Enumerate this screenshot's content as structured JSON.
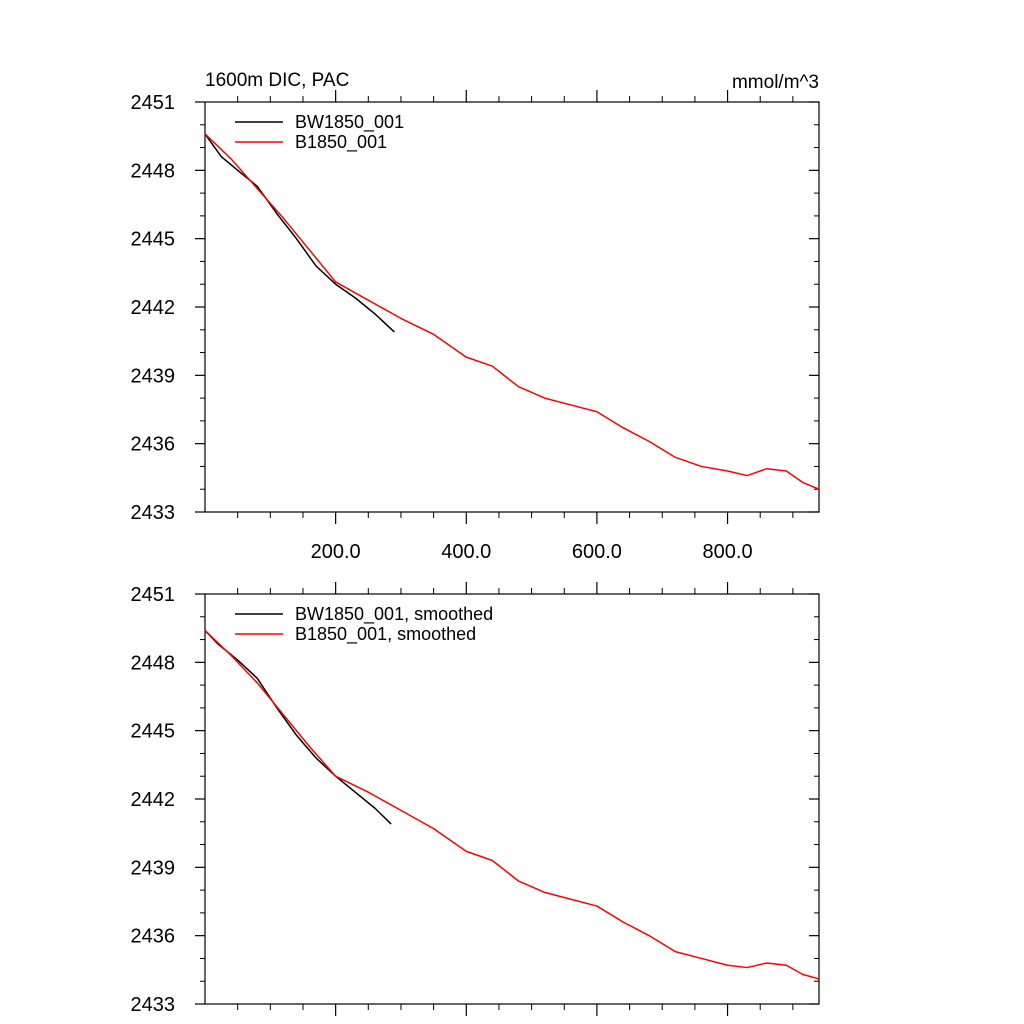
{
  "chart_data": [
    {
      "type": "line",
      "title": "1600m DIC, PAC",
      "units": "mmol/m^3",
      "xlim": [
        0,
        940
      ],
      "ylim": [
        2433,
        2451
      ],
      "y_ticks": [
        2451,
        2448,
        2445,
        2442,
        2439,
        2436,
        2433
      ],
      "x_ticks": [
        200,
        400,
        600,
        800
      ],
      "x_tick_labels": [
        "200.0",
        "400.0",
        "600.0",
        "800.0"
      ],
      "show_x_tick_labels": true,
      "legend_position": "top-left",
      "series": [
        {
          "name": "BW1850_001",
          "color": "#000000",
          "points": [
            [
              0,
              2449.6
            ],
            [
              25,
              2448.6
            ],
            [
              50,
              2448.0
            ],
            [
              80,
              2447.3
            ],
            [
              110,
              2446.1
            ],
            [
              140,
              2445.0
            ],
            [
              170,
              2443.8
            ],
            [
              200,
              2443.0
            ],
            [
              230,
              2442.4
            ],
            [
              260,
              2441.7
            ],
            [
              290,
              2440.9
            ]
          ]
        },
        {
          "name": "B1850_001",
          "color": "#ff0000",
          "points": [
            [
              0,
              2449.6
            ],
            [
              40,
              2448.5
            ],
            [
              80,
              2447.2
            ],
            [
              120,
              2445.9
            ],
            [
              160,
              2444.5
            ],
            [
              200,
              2443.1
            ],
            [
              250,
              2442.3
            ],
            [
              300,
              2441.5
            ],
            [
              350,
              2440.8
            ],
            [
              400,
              2439.8
            ],
            [
              440,
              2439.4
            ],
            [
              480,
              2438.5
            ],
            [
              520,
              2438.0
            ],
            [
              560,
              2437.7
            ],
            [
              600,
              2437.4
            ],
            [
              640,
              2436.7
            ],
            [
              680,
              2436.1
            ],
            [
              720,
              2435.4
            ],
            [
              760,
              2435.0
            ],
            [
              800,
              2434.8
            ],
            [
              830,
              2434.6
            ],
            [
              860,
              2434.9
            ],
            [
              890,
              2434.8
            ],
            [
              915,
              2434.3
            ],
            [
              940,
              2434.0
            ]
          ]
        }
      ]
    },
    {
      "type": "line",
      "title": "",
      "units": "",
      "xlim": [
        0,
        940
      ],
      "ylim": [
        2433,
        2451
      ],
      "y_ticks": [
        2451,
        2448,
        2445,
        2442,
        2439,
        2436,
        2433
      ],
      "x_ticks": [
        200,
        400,
        600,
        800
      ],
      "x_tick_labels": [],
      "show_x_tick_labels": false,
      "legend_position": "top-left",
      "series": [
        {
          "name": "BW1850_001, smoothed",
          "color": "#000000",
          "points": [
            [
              0,
              2449.4
            ],
            [
              20,
              2448.8
            ],
            [
              50,
              2448.1
            ],
            [
              80,
              2447.3
            ],
            [
              110,
              2446.0
            ],
            [
              140,
              2444.8
            ],
            [
              170,
              2443.8
            ],
            [
              200,
              2443.0
            ],
            [
              230,
              2442.3
            ],
            [
              260,
              2441.6
            ],
            [
              285,
              2440.9
            ]
          ]
        },
        {
          "name": "B1850_001, smoothed",
          "color": "#ff0000",
          "points": [
            [
              0,
              2449.4
            ],
            [
              40,
              2448.3
            ],
            [
              80,
              2447.1
            ],
            [
              120,
              2445.7
            ],
            [
              160,
              2444.3
            ],
            [
              200,
              2443.0
            ],
            [
              250,
              2442.3
            ],
            [
              300,
              2441.5
            ],
            [
              350,
              2440.7
            ],
            [
              400,
              2439.7
            ],
            [
              440,
              2439.3
            ],
            [
              480,
              2438.4
            ],
            [
              520,
              2437.9
            ],
            [
              560,
              2437.6
            ],
            [
              600,
              2437.3
            ],
            [
              640,
              2436.6
            ],
            [
              680,
              2436.0
            ],
            [
              720,
              2435.3
            ],
            [
              760,
              2435.0
            ],
            [
              800,
              2434.7
            ],
            [
              830,
              2434.6
            ],
            [
              860,
              2434.8
            ],
            [
              890,
              2434.7
            ],
            [
              915,
              2434.3
            ],
            [
              940,
              2434.1
            ]
          ]
        }
      ]
    }
  ]
}
